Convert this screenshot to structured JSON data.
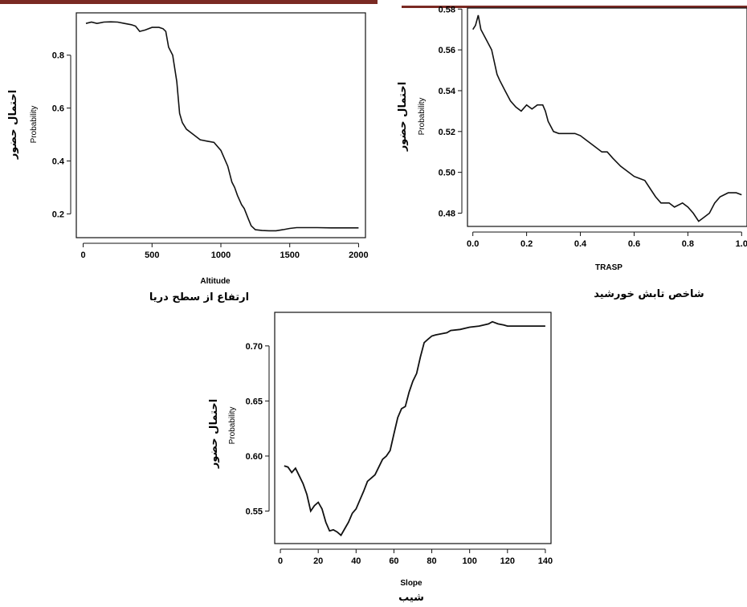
{
  "colors": {
    "accent_bar": "#7a2a23",
    "line": "#111111",
    "axis": "#111111",
    "background": "#ffffff"
  },
  "chart_data": [
    {
      "type": "line",
      "xlabel": "Altitude",
      "ylabel": "Probability",
      "ylabel_fa": "احتمال حضور",
      "caption_fa": "ارتفاع از سطح دریا",
      "xticks": [
        0,
        500,
        1000,
        1500,
        2000
      ],
      "yticks": [
        0.2,
        0.4,
        0.6,
        0.8
      ],
      "xlim": [
        -50,
        2050
      ],
      "ylim": [
        0.11,
        0.96
      ],
      "x": [
        20,
        60,
        100,
        150,
        200,
        250,
        300,
        350,
        380,
        410,
        450,
        500,
        550,
        580,
        600,
        620,
        650,
        680,
        700,
        720,
        750,
        800,
        850,
        900,
        950,
        1000,
        1050,
        1080,
        1100,
        1120,
        1150,
        1170,
        1200,
        1220,
        1250,
        1300,
        1350,
        1400,
        1450,
        1500,
        1550,
        1600,
        1700,
        1800,
        1900,
        2000
      ],
      "y": [
        0.92,
        0.925,
        0.92,
        0.925,
        0.926,
        0.925,
        0.92,
        0.915,
        0.91,
        0.89,
        0.895,
        0.905,
        0.905,
        0.9,
        0.89,
        0.83,
        0.8,
        0.7,
        0.58,
        0.545,
        0.52,
        0.5,
        0.48,
        0.475,
        0.47,
        0.44,
        0.38,
        0.32,
        0.3,
        0.27,
        0.235,
        0.22,
        0.18,
        0.155,
        0.14,
        0.137,
        0.136,
        0.136,
        0.14,
        0.145,
        0.148,
        0.148,
        0.148,
        0.147,
        0.147,
        0.147
      ]
    },
    {
      "type": "line",
      "xlabel": "TRASP",
      "ylabel": "Probability",
      "ylabel_fa": "احتمال حضور",
      "caption_fa": "شاخص تابش خورشید",
      "xticks": [
        0.0,
        0.2,
        0.4,
        0.6,
        0.8,
        1.0
      ],
      "ytick_labels": [
        "0.48",
        "0.50",
        "0.52",
        "0.54",
        "0.56",
        "0.58"
      ],
      "yticks": [
        0.48,
        0.5,
        0.52,
        0.54,
        0.56,
        0.58
      ],
      "xlim": [
        -0.02,
        1.02
      ],
      "ylim": [
        0.4735,
        0.5805
      ],
      "x": [
        0.0,
        0.01,
        0.02,
        0.03,
        0.05,
        0.07,
        0.09,
        0.1,
        0.12,
        0.14,
        0.16,
        0.18,
        0.2,
        0.22,
        0.24,
        0.26,
        0.27,
        0.28,
        0.3,
        0.32,
        0.35,
        0.38,
        0.4,
        0.42,
        0.45,
        0.48,
        0.5,
        0.52,
        0.55,
        0.58,
        0.6,
        0.62,
        0.64,
        0.66,
        0.68,
        0.7,
        0.73,
        0.75,
        0.78,
        0.8,
        0.82,
        0.84,
        0.86,
        0.88,
        0.9,
        0.92,
        0.95,
        0.98,
        1.0
      ],
      "y": [
        0.57,
        0.572,
        0.577,
        0.57,
        0.565,
        0.56,
        0.548,
        0.545,
        0.54,
        0.535,
        0.532,
        0.53,
        0.533,
        0.531,
        0.533,
        0.533,
        0.53,
        0.525,
        0.52,
        0.519,
        0.519,
        0.519,
        0.518,
        0.516,
        0.513,
        0.51,
        0.51,
        0.507,
        0.503,
        0.5,
        0.498,
        0.497,
        0.496,
        0.492,
        0.488,
        0.485,
        0.485,
        0.483,
        0.485,
        0.483,
        0.48,
        0.476,
        0.478,
        0.48,
        0.485,
        0.488,
        0.49,
        0.49,
        0.489
      ]
    },
    {
      "type": "line",
      "xlabel": "Slope",
      "ylabel": "Probability",
      "ylabel_fa": "احتمال حضور",
      "caption_fa": "شیب",
      "xticks": [
        0,
        20,
        40,
        60,
        80,
        100,
        120,
        140
      ],
      "ytick_labels": [
        "0.55",
        "0.60",
        "0.65",
        "0.70"
      ],
      "yticks": [
        0.55,
        0.6,
        0.65,
        0.7
      ],
      "xlim": [
        -3,
        143
      ],
      "ylim": [
        0.5205,
        0.7305
      ],
      "x": [
        2,
        4,
        6,
        8,
        10,
        12,
        14,
        16,
        18,
        20,
        22,
        24,
        26,
        28,
        30,
        32,
        34,
        36,
        38,
        40,
        42,
        44,
        46,
        48,
        50,
        52,
        54,
        56,
        58,
        60,
        62,
        64,
        66,
        68,
        70,
        72,
        74,
        76,
        78,
        80,
        82,
        85,
        88,
        90,
        95,
        100,
        105,
        110,
        112,
        115,
        118,
        120,
        125,
        130,
        135,
        140
      ],
      "y": [
        0.591,
        0.59,
        0.585,
        0.589,
        0.582,
        0.575,
        0.565,
        0.55,
        0.555,
        0.558,
        0.552,
        0.54,
        0.532,
        0.533,
        0.531,
        0.528,
        0.534,
        0.54,
        0.548,
        0.552,
        0.56,
        0.568,
        0.577,
        0.58,
        0.583,
        0.59,
        0.597,
        0.6,
        0.605,
        0.62,
        0.635,
        0.643,
        0.645,
        0.658,
        0.668,
        0.675,
        0.69,
        0.703,
        0.706,
        0.709,
        0.71,
        0.711,
        0.712,
        0.714,
        0.715,
        0.717,
        0.718,
        0.72,
        0.722,
        0.72,
        0.719,
        0.718,
        0.718,
        0.718,
        0.718,
        0.718
      ]
    }
  ]
}
